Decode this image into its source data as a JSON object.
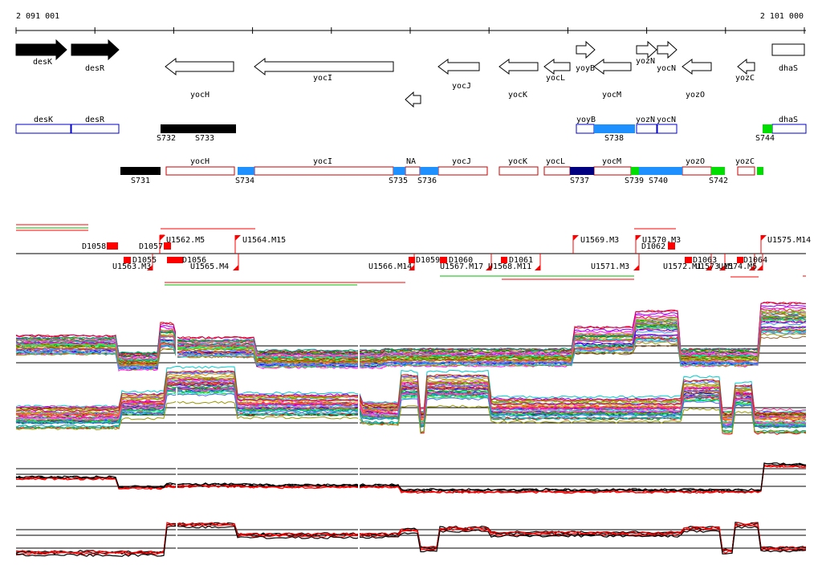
{
  "ruler": {
    "start_label": "2 091 001",
    "end_label": "2 101 000"
  },
  "colors": {
    "black": "#000000",
    "red": "#ff0000",
    "blue": "#0000cc",
    "lightblue": "#1e90ff",
    "green": "#00dd00",
    "navy": "#000080",
    "darkred": "#cc0000"
  },
  "genes_row1": [
    {
      "name": "desK",
      "dir": "right",
      "filled": true
    },
    {
      "name": "desR",
      "dir": "right",
      "filled": true
    },
    {
      "name": "yocH",
      "dir": "left",
      "filled": false
    },
    {
      "name": "yocI",
      "dir": "left",
      "filled": false
    },
    {
      "name": "",
      "dir": "left",
      "filled": false
    },
    {
      "name": "yocJ",
      "dir": "left",
      "filled": false
    },
    {
      "name": "yocK",
      "dir": "left",
      "filled": false
    },
    {
      "name": "yocL",
      "dir": "left",
      "filled": false
    },
    {
      "name": "yoyB",
      "dir": "right",
      "filled": false
    },
    {
      "name": "yocM",
      "dir": "left",
      "filled": false
    },
    {
      "name": "yozN",
      "dir": "right",
      "filled": false
    },
    {
      "name": "yocN",
      "dir": "right",
      "filled": false
    },
    {
      "name": "yozO",
      "dir": "left",
      "filled": false
    },
    {
      "name": "yozC",
      "dir": "left",
      "filled": false
    },
    {
      "name": "dhaS",
      "dir": "right",
      "filled": false
    }
  ],
  "row2_boxes": [
    {
      "name": "desK"
    },
    {
      "name": "desR"
    },
    {
      "name": "yoyB"
    },
    {
      "name": "yozN"
    },
    {
      "name": "yocN"
    },
    {
      "name": "dhaS"
    }
  ],
  "row2_segments": [
    {
      "name": "S732"
    },
    {
      "name": "S733"
    },
    {
      "name": "S738"
    },
    {
      "name": "S744"
    }
  ],
  "row3_boxes": [
    {
      "name": "yocH"
    },
    {
      "name": "yocI"
    },
    {
      "name": "NA"
    },
    {
      "name": "yocJ"
    },
    {
      "name": "yocK"
    },
    {
      "name": "yocL"
    },
    {
      "name": "yocM"
    },
    {
      "name": "yozO"
    },
    {
      "name": "yozC"
    }
  ],
  "row3_segments": [
    {
      "name": "S731"
    },
    {
      "name": "S734"
    },
    {
      "name": "S735"
    },
    {
      "name": "S736"
    },
    {
      "name": "S737"
    },
    {
      "name": "S739"
    },
    {
      "name": "S740"
    },
    {
      "name": "S742"
    }
  ],
  "upper_features": [
    {
      "name": "U1562.M5"
    },
    {
      "name": "U1564.M15"
    },
    {
      "name": "U1569.M3"
    },
    {
      "name": "U1570.M3"
    },
    {
      "name": "U1575.M14"
    },
    {
      "name": "D1057"
    },
    {
      "name": "D1062"
    },
    {
      "name": "D1058"
    }
  ],
  "lower_features": [
    {
      "name": "U1563.M3"
    },
    {
      "name": "D1055"
    },
    {
      "name": "D1056"
    },
    {
      "name": "U1565.M4"
    },
    {
      "name": "U1566.M14"
    },
    {
      "name": "D1059"
    },
    {
      "name": "D1060"
    },
    {
      "name": "U1567.M17"
    },
    {
      "name": "U1568.M11"
    },
    {
      "name": "D1061"
    },
    {
      "name": "U1571.M3"
    },
    {
      "name": "U1572.M1"
    },
    {
      "name": "D1063"
    },
    {
      "name": "U1573.M1"
    },
    {
      "name": "U1574.M5"
    },
    {
      "name": "D1064"
    }
  ]
}
